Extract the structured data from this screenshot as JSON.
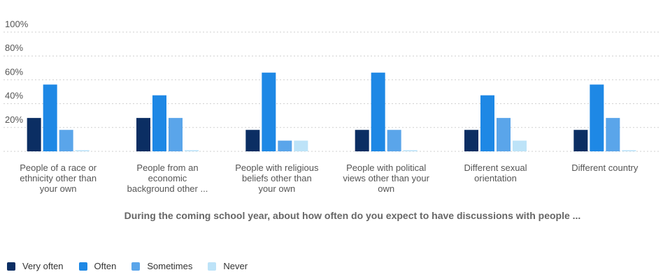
{
  "chart_data": {
    "type": "bar",
    "xlabel": "During the coming school year, about how often do you expect to have discussions with people ...",
    "ylabel": "",
    "ylim": [
      0,
      100
    ],
    "yticks": [
      "20%",
      "40%",
      "60%",
      "80%",
      "100%"
    ],
    "grid": true,
    "legend_position": "bottom-left",
    "categories": [
      [
        "People of a race or",
        "ethnicity other than",
        "your own"
      ],
      [
        "People from an",
        "economic",
        "background other ..."
      ],
      [
        "People with religious",
        "beliefs other than",
        "your own"
      ],
      [
        "People with political",
        "views other than your",
        "own"
      ],
      [
        "Different sexual",
        "orientation"
      ],
      [
        "Different country"
      ]
    ],
    "series": [
      {
        "name": "Very often",
        "color": "#0b2e63",
        "values": [
          28,
          28,
          18,
          18,
          18,
          18
        ]
      },
      {
        "name": "Often",
        "color": "#1e88e5",
        "values": [
          56,
          47,
          66,
          66,
          47,
          56
        ]
      },
      {
        "name": "Sometimes",
        "color": "#5aa5ea",
        "values": [
          18,
          28,
          9,
          18,
          28,
          28
        ]
      },
      {
        "name": "Never",
        "color": "#bde3f8",
        "values": [
          1,
          1,
          9,
          1,
          9,
          1
        ]
      }
    ]
  }
}
